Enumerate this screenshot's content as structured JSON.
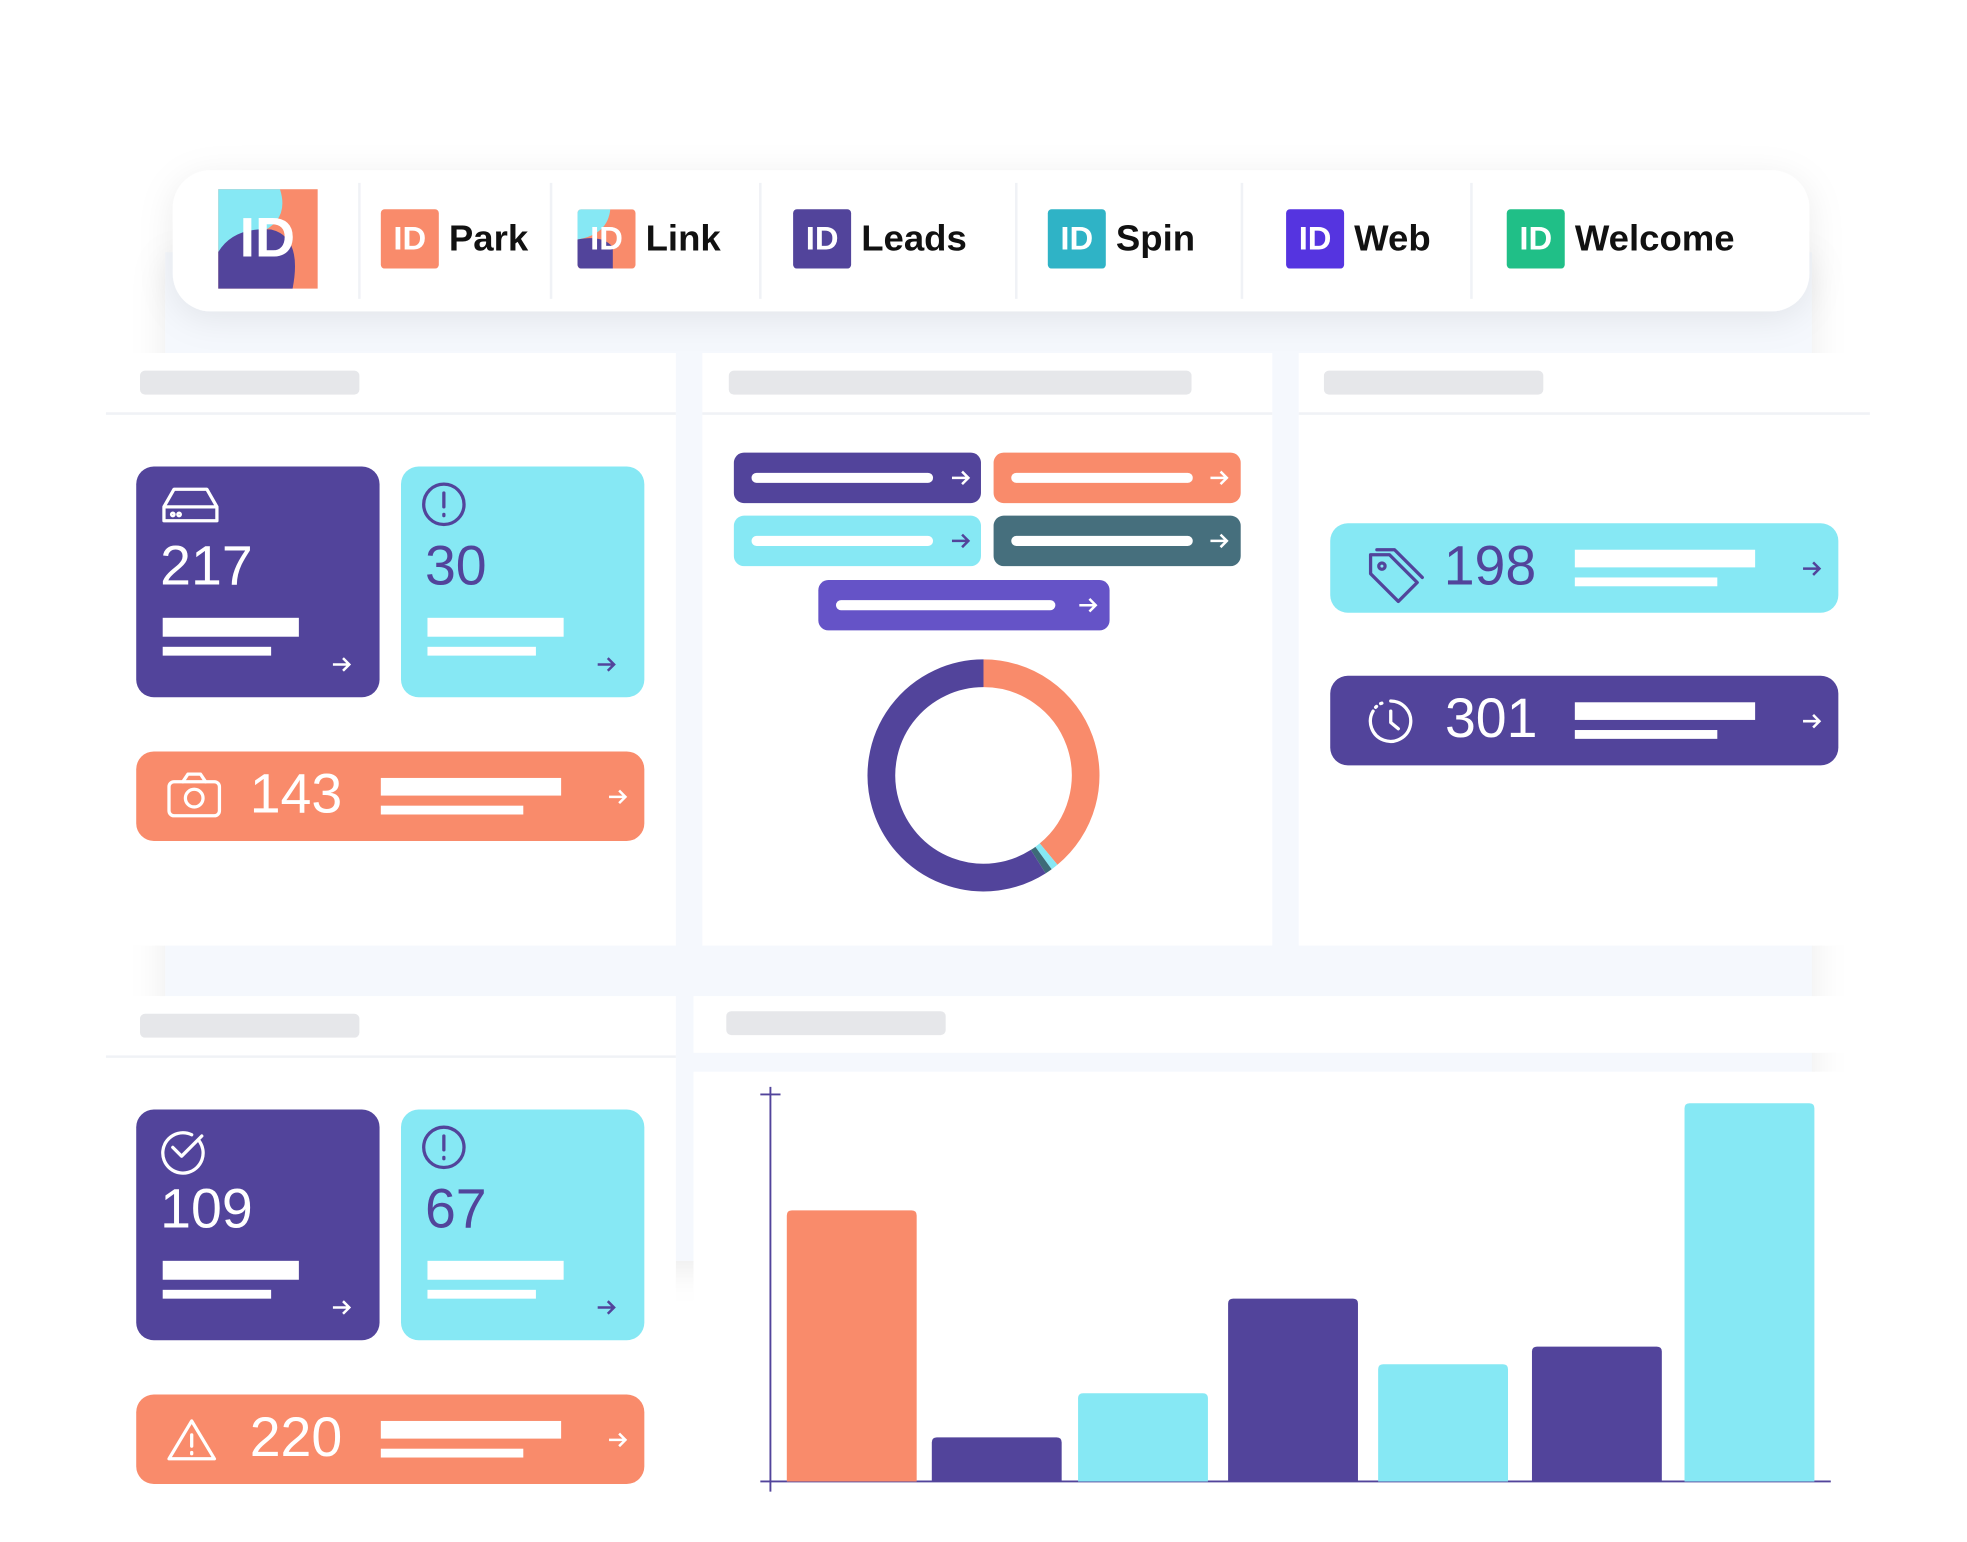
{
  "nav": {
    "logo": "ID",
    "items": [
      {
        "badge": "ID",
        "label": "Park",
        "color": "#f98b6b"
      },
      {
        "badge": "ID",
        "label": "Link",
        "color": "#52449b"
      },
      {
        "badge": "ID",
        "label": "Leads",
        "color": "#52449b"
      },
      {
        "badge": "ID",
        "label": "Spin",
        "color": "#2fb3c6"
      },
      {
        "badge": "ID",
        "label": "Web",
        "color": "#5534e0"
      },
      {
        "badge": "ID",
        "label": "Welcome",
        "color": "#20bf87"
      }
    ]
  },
  "tiles": [
    {
      "value": 217,
      "color": "#52449b"
    },
    {
      "value": 30,
      "color": "#86e8f4"
    },
    {
      "value": 143,
      "color": "#f98b6b"
    },
    {
      "value": 198,
      "color": "#86e8f4"
    },
    {
      "value": 301,
      "color": "#52449b"
    },
    {
      "value": 109,
      "color": "#52449b"
    },
    {
      "value": 67,
      "color": "#86e8f4"
    },
    {
      "value": 220,
      "color": "#f98b6b"
    }
  ],
  "chart_data": [
    {
      "type": "pie",
      "values": [
        39,
        1,
        1,
        59
      ],
      "colors": [
        "#f98b6b",
        "#86e8f4",
        "#3d6b78",
        "#52449b"
      ]
    },
    {
      "type": "bar",
      "values": [
        215,
        35,
        70,
        145,
        93,
        107,
        300
      ],
      "colors": [
        "#f98b6b",
        "#52449b",
        "#86e8f4",
        "#52449b",
        "#86e8f4",
        "#52449b",
        "#86e8f4"
      ],
      "ylim": [
        0,
        307
      ]
    }
  ]
}
